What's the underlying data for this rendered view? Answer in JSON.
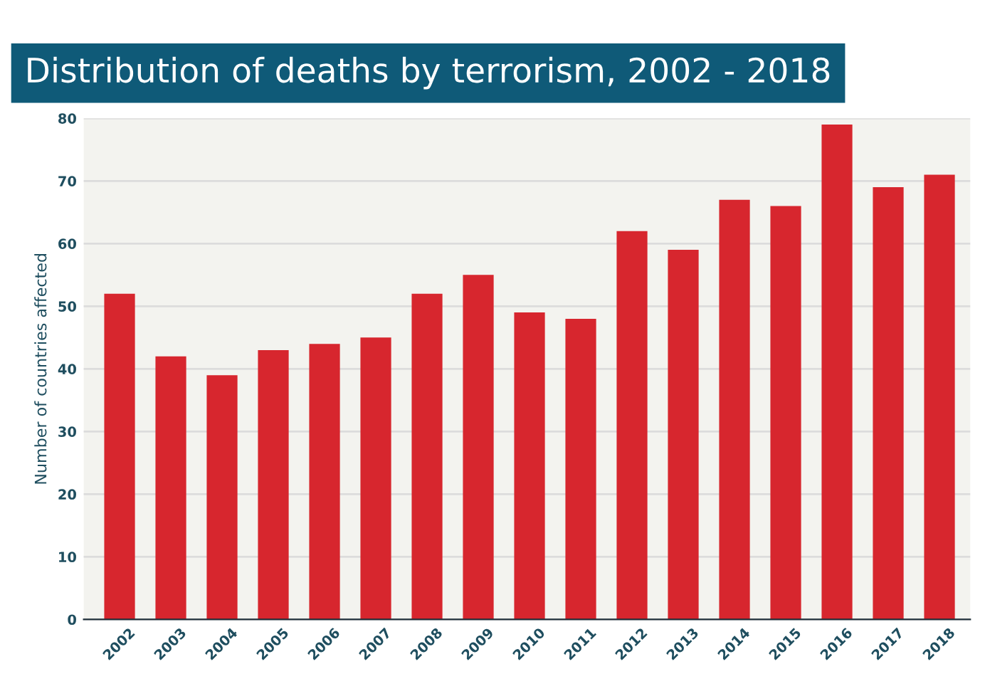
{
  "chart_data": {
    "type": "bar",
    "title": "Distribution of deaths by terrorism, 2002 - 2018",
    "ylabel": "Number of countries affected",
    "categories": [
      "2002",
      "2003",
      "2004",
      "2005",
      "2006",
      "2007",
      "2008",
      "2009",
      "2010",
      "2011",
      "2012",
      "2013",
      "2014",
      "2015",
      "2016",
      "2017",
      "2018"
    ],
    "values": [
      52,
      42,
      39,
      43,
      44,
      45,
      52,
      55,
      49,
      48,
      62,
      59,
      67,
      66,
      79,
      69,
      71
    ],
    "color": "#d7262e",
    "ylim": [
      0,
      80
    ],
    "yticks": [
      0,
      10,
      20,
      30,
      40,
      50,
      60,
      70,
      80
    ],
    "grid": "y"
  }
}
